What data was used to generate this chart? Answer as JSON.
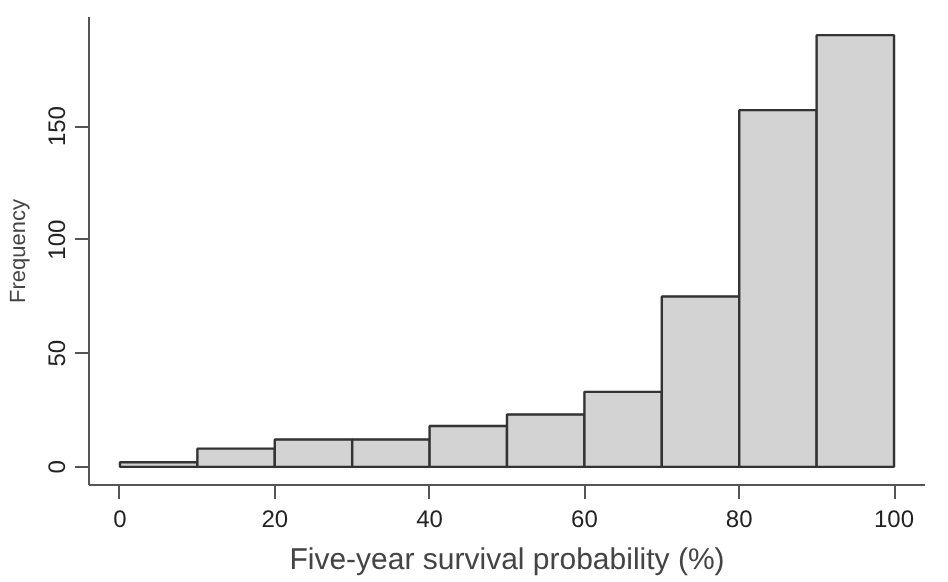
{
  "chart_data": {
    "type": "histogram",
    "xlabel": "Five-year survival probability (%)",
    "ylabel": "Frequency",
    "bins": [
      0,
      10,
      20,
      30,
      40,
      50,
      60,
      70,
      80,
      90,
      100
    ],
    "values": [
      2,
      8,
      12,
      12,
      18,
      23,
      33,
      75,
      157,
      190
    ],
    "color": "#d3d3d3",
    "xlim": [
      -4,
      104
    ],
    "ylim": [
      -8,
      198
    ],
    "xticks": [
      0,
      20,
      40,
      60,
      80,
      100
    ],
    "yticks": [
      0,
      50,
      100,
      150
    ],
    "grid": false
  }
}
